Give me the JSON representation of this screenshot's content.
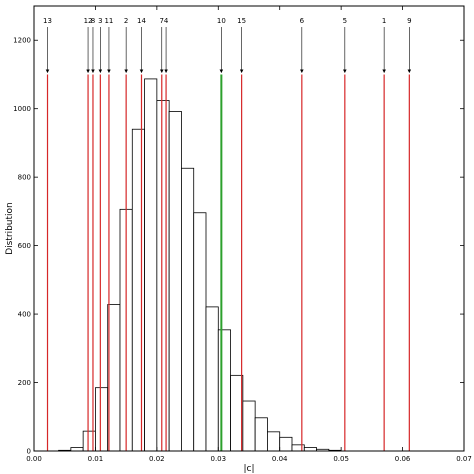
{
  "chart_data": {
    "type": "histogram",
    "xlabel": "|c|",
    "ylabel": "Distribution",
    "xlim": [
      0.0,
      0.07
    ],
    "ylim": [
      0,
      1300
    ],
    "x_ticks": [
      0.0,
      0.01,
      0.02,
      0.03,
      0.04,
      0.05,
      0.06,
      0.07
    ],
    "x_tick_labels": [
      "0.00",
      "0.01",
      "0.02",
      "0.03",
      "0.04",
      "0.05",
      "0.06",
      "0.07"
    ],
    "y_ticks": [
      0,
      200,
      400,
      600,
      800,
      1000,
      1200
    ],
    "y_tick_labels": [
      "0",
      "200",
      "400",
      "600",
      "800",
      "1000",
      "1200"
    ],
    "histogram": {
      "bin_width": 0.002,
      "bins": [
        {
          "x0": 0.004,
          "x1": 0.006,
          "value": 2
        },
        {
          "x0": 0.006,
          "x1": 0.008,
          "value": 10
        },
        {
          "x0": 0.008,
          "x1": 0.01,
          "value": 58
        },
        {
          "x0": 0.01,
          "x1": 0.012,
          "value": 185
        },
        {
          "x0": 0.012,
          "x1": 0.014,
          "value": 428
        },
        {
          "x0": 0.014,
          "x1": 0.016,
          "value": 706
        },
        {
          "x0": 0.016,
          "x1": 0.018,
          "value": 940
        },
        {
          "x0": 0.018,
          "x1": 0.02,
          "value": 1087
        },
        {
          "x0": 0.02,
          "x1": 0.022,
          "value": 1024
        },
        {
          "x0": 0.022,
          "x1": 0.024,
          "value": 992
        },
        {
          "x0": 0.024,
          "x1": 0.026,
          "value": 826
        },
        {
          "x0": 0.026,
          "x1": 0.028,
          "value": 696
        },
        {
          "x0": 0.028,
          "x1": 0.03,
          "value": 421
        },
        {
          "x0": 0.03,
          "x1": 0.032,
          "value": 354
        },
        {
          "x0": 0.032,
          "x1": 0.034,
          "value": 221
        },
        {
          "x0": 0.034,
          "x1": 0.036,
          "value": 146
        },
        {
          "x0": 0.036,
          "x1": 0.038,
          "value": 97
        },
        {
          "x0": 0.038,
          "x1": 0.04,
          "value": 56
        },
        {
          "x0": 0.04,
          "x1": 0.042,
          "value": 40
        },
        {
          "x0": 0.042,
          "x1": 0.044,
          "value": 18
        },
        {
          "x0": 0.044,
          "x1": 0.046,
          "value": 10
        },
        {
          "x0": 0.046,
          "x1": 0.048,
          "value": 5
        },
        {
          "x0": 0.048,
          "x1": 0.05,
          "value": 2
        }
      ]
    },
    "markers": [
      {
        "label": "13",
        "x": 0.0022,
        "color": "#d62728"
      },
      {
        "label": "12",
        "x": 0.0088,
        "color": "#d62728"
      },
      {
        "label": "8",
        "x": 0.0096,
        "color": "#d62728"
      },
      {
        "label": "3",
        "x": 0.0108,
        "color": "#d62728"
      },
      {
        "label": "11",
        "x": 0.0122,
        "color": "#d62728"
      },
      {
        "label": "2",
        "x": 0.015,
        "color": "#d62728"
      },
      {
        "label": "14",
        "x": 0.0175,
        "color": "#d62728"
      },
      {
        "label": "7",
        "x": 0.0208,
        "color": "#d62728"
      },
      {
        "label": "4",
        "x": 0.0215,
        "color": "#d62728"
      },
      {
        "label": "10",
        "x": 0.0305,
        "color": "#2ca02c"
      },
      {
        "label": "15",
        "x": 0.0338,
        "color": "#d62728"
      },
      {
        "label": "6",
        "x": 0.0436,
        "color": "#d62728"
      },
      {
        "label": "5",
        "x": 0.0506,
        "color": "#d62728"
      },
      {
        "label": "1",
        "x": 0.057,
        "color": "#d62728"
      },
      {
        "label": "9",
        "x": 0.0611,
        "color": "#d62728"
      }
    ],
    "marker_line_top_value": 1100,
    "grid": false
  }
}
